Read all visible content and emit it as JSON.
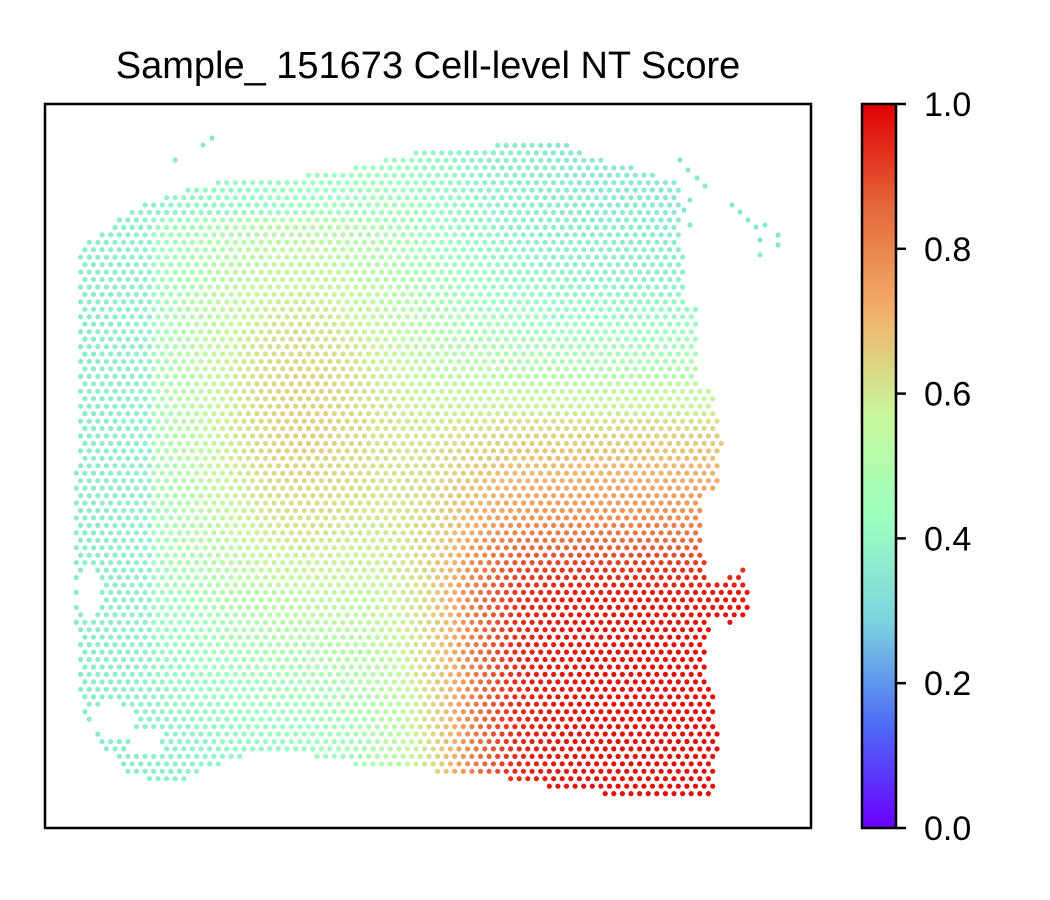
{
  "chart_data": {
    "type": "scatter",
    "title": "Sample_ 151673 Cell-level NT Score",
    "xlabel": "",
    "ylabel": "",
    "grid": false,
    "colorbar": {
      "label": "",
      "min": 0.0,
      "max": 1.0,
      "ticks": [
        0.0,
        0.2,
        0.4,
        0.6,
        0.8,
        1.0
      ],
      "tick_labels": [
        "0.0",
        "0.2",
        "0.4",
        "0.6",
        "0.8",
        "1.0"
      ],
      "colormap": "rainbow",
      "colormap_stops": [
        "#6a00ff",
        "#4d6cf5",
        "#7cd4de",
        "#9dffc0",
        "#c8f79a",
        "#f2b06a",
        "#e4683c",
        "#e00000"
      ]
    },
    "spots": {
      "marker": "small circle",
      "description_values": "spatial transcriptomics spots colored by NT score; low values (~0.35) on left/top edges, mid values (~0.45-0.6) in a central band, high values (~0.8-1.0) in the lower-right region"
    }
  }
}
